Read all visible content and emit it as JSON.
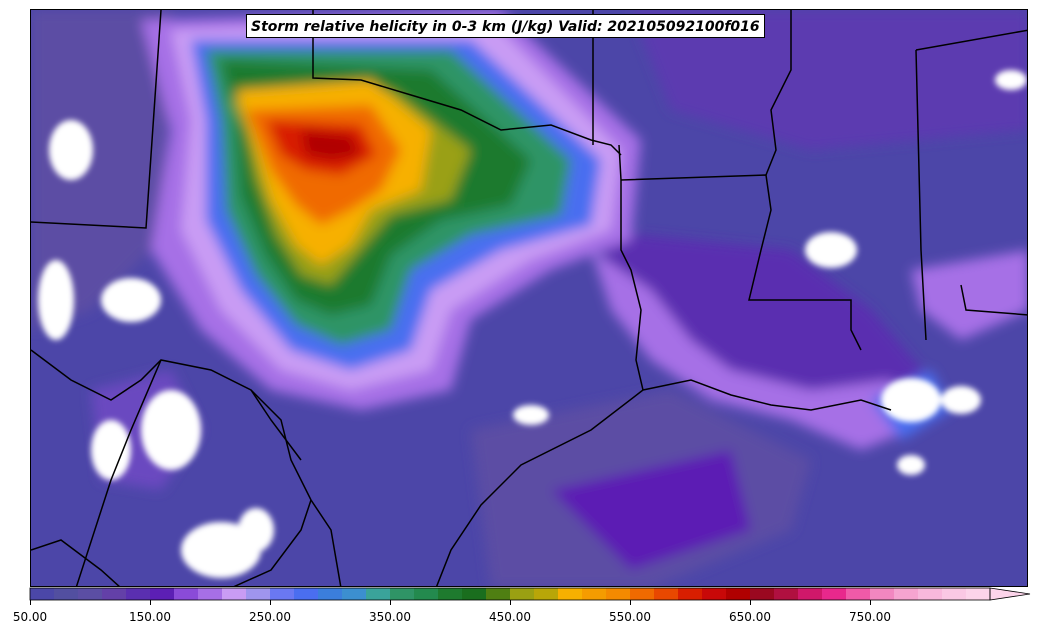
{
  "title": "Storm relative helicity in 0-3 km (J/kg) Valid: 202105092100f016",
  "colorbar": {
    "min": 50,
    "max": 850,
    "step": 20,
    "ticks": [
      "50.00",
      "150.00",
      "250.00",
      "350.00",
      "450.00",
      "550.00",
      "650.00",
      "750.00"
    ],
    "tick_values": [
      50,
      150,
      250,
      350,
      450,
      550,
      650,
      750
    ],
    "extend": "max",
    "colors": [
      "#4b47a8",
      "#524fa0",
      "#5b4ea4",
      "#6340a8",
      "#5a2fb0",
      "#5c1fb4",
      "#8a4bd8",
      "#a66fe6",
      "#c99cf4",
      "#9f95ee",
      "#6a78f2",
      "#4a6ef0",
      "#3b7edc",
      "#3c8fd0",
      "#3aa39a",
      "#2f9466",
      "#238a4e",
      "#1e7a2e",
      "#1a6e1e",
      "#4f7f12",
      "#9aa012",
      "#b8a608",
      "#f7b000",
      "#f59c00",
      "#f48a00",
      "#f06a00",
      "#e84800",
      "#d81e00",
      "#c80808",
      "#b00000",
      "#9a0820",
      "#b01040",
      "#d0186a",
      "#e8288c",
      "#f05aa8",
      "#f287c0",
      "#f6a4d0",
      "#f8b8dc",
      "#fac8e4",
      "#fcd4ea"
    ]
  },
  "map": {
    "background_color": "#4a44a6",
    "state_line_color": "#000000",
    "missing_color": "#ffffff"
  }
}
